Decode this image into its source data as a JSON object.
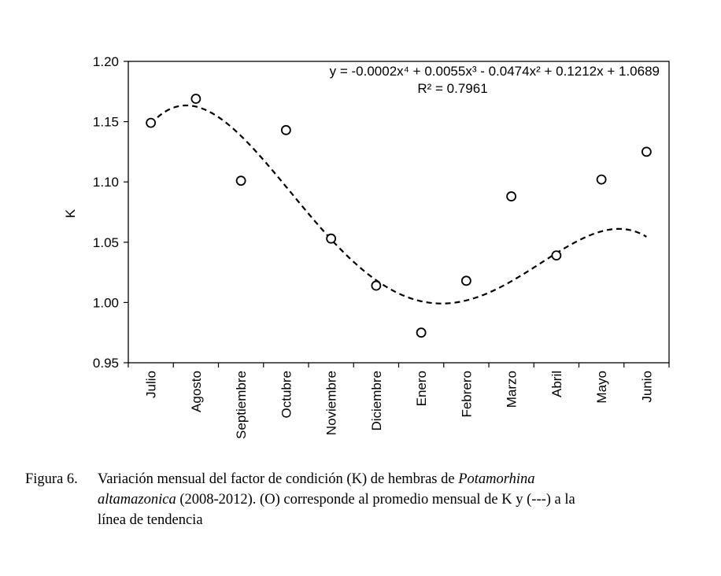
{
  "chart_data": {
    "type": "scatter",
    "ylabel": "K",
    "xlabel": "",
    "ylim": [
      0.95,
      1.2
    ],
    "yticks": [
      "0.95",
      "1.00",
      "1.05",
      "1.10",
      "1.15",
      "1.20"
    ],
    "categories": [
      "Julio",
      "Agosto",
      "Septiembre",
      "Octubre",
      "Noviembre",
      "Diciembre",
      "Enero",
      "Febrero",
      "Marzo",
      "Abril",
      "Mayo",
      "Junio"
    ],
    "values": [
      1.149,
      1.169,
      1.101,
      1.143,
      1.053,
      1.014,
      0.975,
      1.018,
      1.088,
      1.039,
      1.102,
      1.125
    ],
    "marker": "open-circle",
    "trendline": {
      "type": "polynomial-4",
      "style": "dashed",
      "equation": "y = -0.0002x⁴ + 0.0055x³ - 0.0474x² + 0.1212x + 1.0689",
      "r2": "R² = 0.7961",
      "coefficients": [
        -0.0002,
        0.0055,
        -0.0474,
        0.1212,
        1.0689
      ]
    },
    "grid": false
  },
  "caption": {
    "label": "Figura 6.",
    "part1": "Variación mensual del factor de condición (K) de hembras de ",
    "species_genus": "Potamorhina",
    "species_epithet": "altamazonica",
    "part2": " (2008-2012). (O) corresponde al promedio mensual de K y (---) a la",
    "part3": "línea de tendencia"
  }
}
